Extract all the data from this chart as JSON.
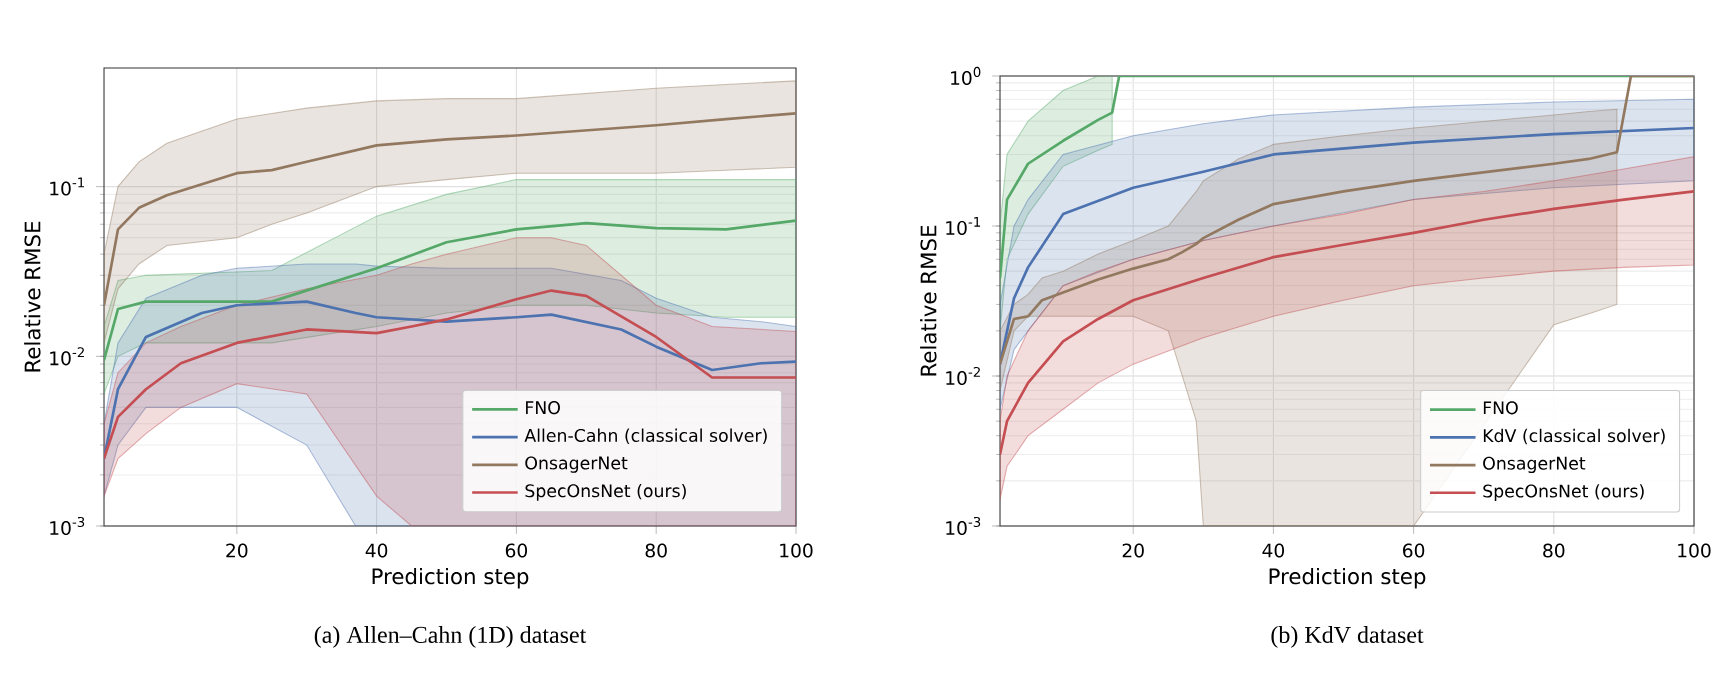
{
  "chart_data": [
    {
      "type": "line",
      "title": "(a) Allen–Cahn (1D) dataset",
      "xlabel": "Prediction step",
      "ylabel": "Relative RMSE",
      "xlim": [
        1,
        100
      ],
      "ylim": [
        0.001,
        0.5
      ],
      "xticks": [
        20,
        40,
        60,
        80,
        100
      ],
      "yticks": [
        {
          "value": 0.001,
          "label": "10$^{-3}$"
        },
        {
          "value": 0.01,
          "label": "10$^{-2}$"
        },
        {
          "value": 0.1,
          "label": "10$^{-1}$"
        }
      ],
      "log": "y",
      "grid": true,
      "legend": "bottom right",
      "series": [
        {
          "name": "FNO",
          "color": "#55a868",
          "x": [
            1,
            3,
            7,
            25,
            40,
            50,
            60,
            70,
            80,
            90,
            100
          ],
          "values": [
            0.0095,
            0.019,
            0.021,
            0.021,
            0.033,
            0.047,
            0.056,
            0.061,
            0.057,
            0.056,
            0.063
          ],
          "lower": [
            0.006,
            0.01,
            0.012,
            0.012,
            0.015,
            0.018,
            0.02,
            0.02,
            0.018,
            0.017,
            0.017
          ],
          "upper": [
            0.015,
            0.028,
            0.03,
            0.032,
            0.067,
            0.09,
            0.11,
            0.11,
            0.11,
            0.11,
            0.11
          ]
        },
        {
          "name": "Allen-Cahn (classical solver)",
          "color": "#4c72b0",
          "x": [
            1,
            3,
            7,
            15,
            20,
            30,
            37,
            40,
            50,
            60,
            65,
            75,
            80,
            88,
            95,
            100
          ],
          "values": [
            0.0025,
            0.0064,
            0.013,
            0.018,
            0.02,
            0.021,
            0.018,
            0.017,
            0.016,
            0.017,
            0.0176,
            0.0144,
            0.0114,
            0.0083,
            0.0091,
            0.0093
          ],
          "lower": [
            0.0015,
            0.003,
            0.005,
            0.005,
            0.005,
            0.003,
            0.001,
            0.001,
            0.001,
            0.001,
            0.001,
            0.001,
            0.001,
            0.001,
            0.001,
            0.001
          ],
          "upper": [
            0.004,
            0.012,
            0.022,
            0.03,
            0.033,
            0.035,
            0.035,
            0.034,
            0.033,
            0.033,
            0.033,
            0.028,
            0.022,
            0.017,
            0.016,
            0.015
          ]
        },
        {
          "name": "OnsagerNet",
          "color": "#937860",
          "x": [
            1,
            3,
            6,
            10,
            20,
            25,
            30,
            40,
            50,
            60,
            80,
            90,
            100
          ],
          "values": [
            0.02,
            0.056,
            0.075,
            0.089,
            0.12,
            0.125,
            0.14,
            0.175,
            0.19,
            0.2,
            0.23,
            0.25,
            0.27
          ],
          "lower": [
            0.012,
            0.025,
            0.035,
            0.045,
            0.05,
            0.06,
            0.07,
            0.1,
            0.11,
            0.12,
            0.12,
            0.125,
            0.13
          ],
          "upper": [
            0.04,
            0.1,
            0.14,
            0.18,
            0.25,
            0.27,
            0.29,
            0.32,
            0.33,
            0.33,
            0.38,
            0.4,
            0.42
          ]
        },
        {
          "name": "SpecOnsNet (ours)",
          "color": "#c44e52",
          "x": [
            1,
            3,
            7,
            12,
            20,
            30,
            40,
            45,
            50,
            60,
            65,
            70,
            80,
            88,
            100
          ],
          "values": [
            0.0025,
            0.0044,
            0.0064,
            0.0091,
            0.012,
            0.0144,
            0.0137,
            0.015,
            0.0165,
            0.0217,
            0.0244,
            0.0227,
            0.013,
            0.0075,
            0.0075
          ],
          "lower": [
            0.0015,
            0.0025,
            0.0035,
            0.005,
            0.0069,
            0.006,
            0.0015,
            0.001,
            0.001,
            0.001,
            0.001,
            0.001,
            0.001,
            0.001,
            0.001
          ],
          "upper": [
            0.004,
            0.008,
            0.012,
            0.015,
            0.02,
            0.025,
            0.03,
            0.035,
            0.04,
            0.05,
            0.05,
            0.045,
            0.02,
            0.015,
            0.014
          ]
        }
      ]
    },
    {
      "type": "line",
      "title": "(b) KdV dataset",
      "xlabel": "Prediction step",
      "ylabel": "Relative RMSE",
      "xlim": [
        1,
        100
      ],
      "ylim": [
        0.001,
        1
      ],
      "xticks": [
        20,
        40,
        60,
        80,
        100
      ],
      "yticks": [
        {
          "value": 0.001,
          "label": "10$^{-3}$"
        },
        {
          "value": 0.01,
          "label": "10$^{-2}$"
        },
        {
          "value": 0.1,
          "label": "10$^{-1}$"
        },
        {
          "value": 1,
          "label": "10$^{0}$"
        }
      ],
      "log": "y",
      "grid": true,
      "legend": "bottom right",
      "series": [
        {
          "name": "FNO",
          "color": "#55a868",
          "x": [
            1,
            2,
            5,
            10,
            15,
            17,
            18,
            40,
            60,
            80,
            100
          ],
          "values": [
            0.045,
            0.15,
            0.26,
            0.37,
            0.51,
            0.57,
            1,
            1,
            1,
            1,
            1
          ],
          "lower": [
            0.02,
            0.06,
            0.12,
            0.25,
            0.32,
            0.35,
            null,
            null,
            null,
            null,
            null
          ],
          "upper": [
            0.1,
            0.3,
            0.5,
            0.8,
            1,
            1,
            null,
            null,
            null,
            null,
            null
          ]
        },
        {
          "name": "KdV (classical solver)",
          "color": "#4c72b0",
          "x": [
            1,
            3,
            5,
            10,
            20,
            30,
            40,
            60,
            80,
            100
          ],
          "values": [
            0.012,
            0.033,
            0.053,
            0.12,
            0.18,
            0.23,
            0.3,
            0.36,
            0.41,
            0.45
          ],
          "lower": [
            0.006,
            0.015,
            0.02,
            0.04,
            0.06,
            0.08,
            0.1,
            0.15,
            0.18,
            0.2
          ],
          "upper": [
            0.03,
            0.1,
            0.15,
            0.3,
            0.4,
            0.48,
            0.55,
            0.62,
            0.67,
            0.7
          ]
        },
        {
          "name": "OnsagerNet",
          "color": "#937860",
          "x": [
            1,
            3,
            5,
            7,
            10,
            15,
            20,
            25,
            27,
            29,
            30,
            35,
            40,
            50,
            60,
            80,
            85,
            89,
            91,
            100
          ],
          "values": [
            0.012,
            0.024,
            0.025,
            0.032,
            0.036,
            0.044,
            0.052,
            0.06,
            0.067,
            0.076,
            0.083,
            0.11,
            0.14,
            0.17,
            0.2,
            0.26,
            0.28,
            0.31,
            1,
            1
          ],
          "lower": [
            0.008,
            0.02,
            0.025,
            0.025,
            0.025,
            0.025,
            0.025,
            0.02,
            0.01,
            0.005,
            0.001,
            0.001,
            0.001,
            0.001,
            0.001,
            0.022,
            0.026,
            0.03,
            null,
            null
          ],
          "upper": [
            0.02,
            0.03,
            0.035,
            0.045,
            0.05,
            0.065,
            0.08,
            0.1,
            0.13,
            0.17,
            0.2,
            0.28,
            0.35,
            0.4,
            0.45,
            0.55,
            0.58,
            0.6,
            null,
            null
          ]
        },
        {
          "name": "SpecOnsNet (ours)",
          "color": "#c44e52",
          "x": [
            1,
            2,
            5,
            10,
            15,
            20,
            30,
            40,
            50,
            60,
            70,
            80,
            90,
            100
          ],
          "values": [
            0.003,
            0.005,
            0.009,
            0.017,
            0.024,
            0.032,
            0.045,
            0.062,
            0.075,
            0.09,
            0.11,
            0.13,
            0.15,
            0.17
          ],
          "lower": [
            0.0015,
            0.0025,
            0.004,
            0.006,
            0.009,
            0.012,
            0.018,
            0.025,
            0.032,
            0.04,
            0.045,
            0.05,
            0.053,
            0.055
          ],
          "upper": [
            0.005,
            0.01,
            0.02,
            0.04,
            0.05,
            0.06,
            0.08,
            0.1,
            0.12,
            0.15,
            0.17,
            0.2,
            0.24,
            0.29
          ]
        }
      ]
    }
  ]
}
